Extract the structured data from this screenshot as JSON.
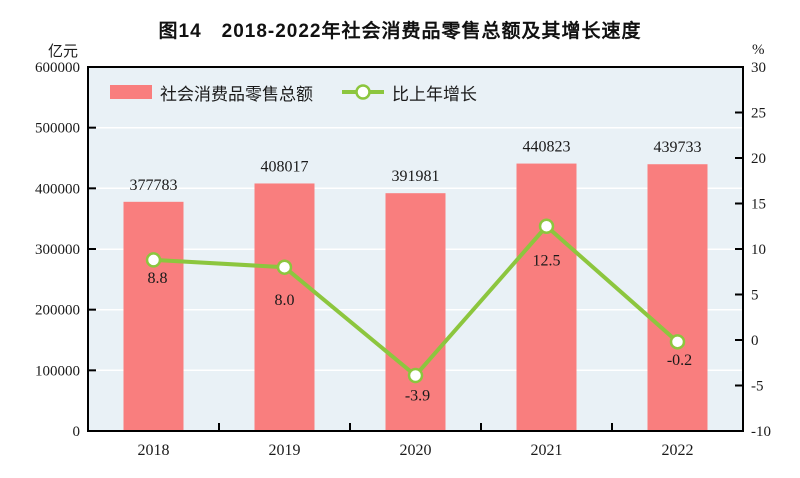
{
  "title": "图14　2018-2022年社会消费品零售总额及其增长速度",
  "left_axis_unit": "亿元",
  "right_axis_unit": "%",
  "legend": {
    "bars": "社会消费品零售总额",
    "line": "比上年增长"
  },
  "colors": {
    "bar": "#F97E7E",
    "line": "#8CC63E",
    "marker_fill": "#FFFFFF",
    "plot_bg": "#E9F1F6",
    "grid": "#FFFFFF",
    "axis": "#000000",
    "text": "#1A1A1A"
  },
  "chart_data": {
    "type": "bar+line",
    "categories": [
      "2018",
      "2019",
      "2020",
      "2021",
      "2022"
    ],
    "series": [
      {
        "name": "社会消费品零售总额",
        "type": "bar",
        "axis": "left",
        "values": [
          377783,
          408017,
          391981,
          440823,
          439733
        ]
      },
      {
        "name": "比上年增长",
        "type": "line",
        "axis": "right",
        "values": [
          8.8,
          8.0,
          -3.9,
          12.5,
          -0.2
        ]
      }
    ],
    "left_axis": {
      "label": "亿元",
      "min": 0,
      "max": 600000,
      "tick_step": 100000
    },
    "right_axis": {
      "label": "%",
      "min": -10,
      "max": 30,
      "tick_step": 5
    },
    "grid": true,
    "legend_position": "top-left-inside",
    "value_labels": {
      "bar": "above-bar",
      "line": "below-point",
      "line_decimals": 1
    }
  }
}
